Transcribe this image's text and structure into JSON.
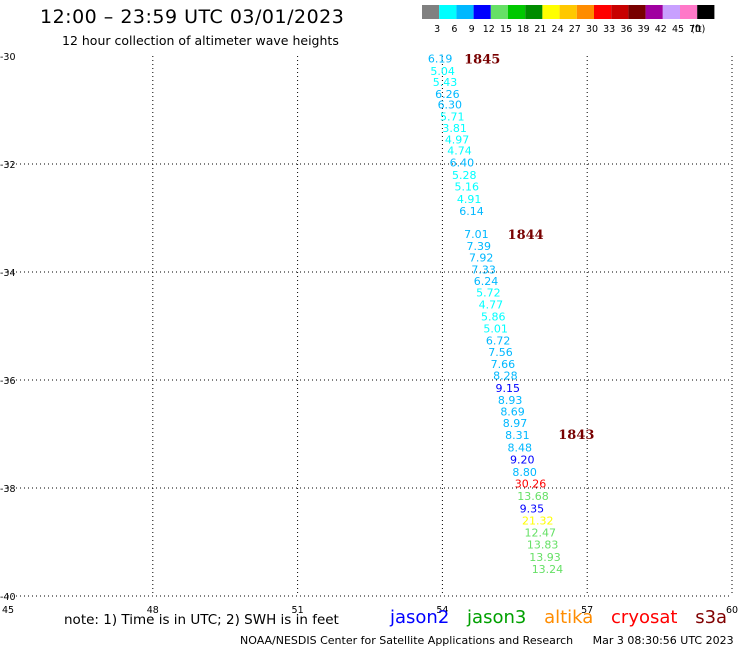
{
  "title": "12:00 – 23:59 UTC 03/01/2023",
  "subtitle": "12 hour collection of altimeter wave heights",
  "colorbar": {
    "unit": "(ft)",
    "bins": [
      {
        "label": "3",
        "color": "#808080"
      },
      {
        "label": "6",
        "color": "#00ffff"
      },
      {
        "label": "9",
        "color": "#00b8ff"
      },
      {
        "label": "12",
        "color": "#0000ff"
      },
      {
        "label": "15",
        "color": "#66e066"
      },
      {
        "label": "18",
        "color": "#00c800"
      },
      {
        "label": "21",
        "color": "#008c00"
      },
      {
        "label": "24",
        "color": "#ffff00"
      },
      {
        "label": "27",
        "color": "#ffc800"
      },
      {
        "label": "30",
        "color": "#ff8c00"
      },
      {
        "label": "33",
        "color": "#ff0000"
      },
      {
        "label": "36",
        "color": "#c80000"
      },
      {
        "label": "39",
        "color": "#780000"
      },
      {
        "label": "42",
        "color": "#a000a0"
      },
      {
        "label": "45",
        "color": "#c8a0ff"
      },
      {
        "label": "70",
        "color": "#ff78c8"
      },
      {
        "label": "",
        "color": "#000000"
      }
    ]
  },
  "axes": {
    "lat_labels": [
      "-30",
      "-32",
      "-34",
      "-36",
      "-38",
      "-40"
    ],
    "lon_labels": [
      "45",
      "48",
      "51",
      "54",
      "57",
      "60"
    ]
  },
  "time_labels": [
    {
      "text": "1845",
      "lon": 54.45,
      "lat": -30.05
    },
    {
      "text": "1844",
      "lon": 55.35,
      "lat": -33.3
    },
    {
      "text": "1843",
      "lon": 56.4,
      "lat": -37.0
    }
  ],
  "observations": [
    {
      "text": "6.19",
      "lon": 53.7,
      "lat": -30.05,
      "color": "#00b8ff"
    },
    {
      "text": "5.04",
      "lon": 53.75,
      "lat": -30.28,
      "color": "#00ffff"
    },
    {
      "text": "5.43",
      "lon": 53.8,
      "lat": -30.48,
      "color": "#00ffff"
    },
    {
      "text": "6.26",
      "lon": 53.85,
      "lat": -30.7,
      "color": "#00b8ff"
    },
    {
      "text": "6.30",
      "lon": 53.9,
      "lat": -30.9,
      "color": "#00b8ff"
    },
    {
      "text": "5.71",
      "lon": 53.95,
      "lat": -31.12,
      "color": "#00ffff"
    },
    {
      "text": "3.81",
      "lon": 54.0,
      "lat": -31.33,
      "color": "#00ffff"
    },
    {
      "text": "4.97",
      "lon": 54.05,
      "lat": -31.55,
      "color": "#00ffff"
    },
    {
      "text": "4.74",
      "lon": 54.1,
      "lat": -31.75,
      "color": "#00ffff"
    },
    {
      "text": "6.40",
      "lon": 54.15,
      "lat": -31.97,
      "color": "#00b8ff"
    },
    {
      "text": "5.28",
      "lon": 54.2,
      "lat": -32.2,
      "color": "#00ffff"
    },
    {
      "text": "5.16",
      "lon": 54.25,
      "lat": -32.42,
      "color": "#00ffff"
    },
    {
      "text": "4.91",
      "lon": 54.3,
      "lat": -32.65,
      "color": "#00ffff"
    },
    {
      "text": "6.14",
      "lon": 54.35,
      "lat": -32.87,
      "color": "#00b8ff"
    },
    {
      "text": "7.01",
      "lon": 54.45,
      "lat": -33.3,
      "color": "#00b8ff"
    },
    {
      "text": "7.39",
      "lon": 54.5,
      "lat": -33.52,
      "color": "#00b8ff"
    },
    {
      "text": "7.92",
      "lon": 54.55,
      "lat": -33.73,
      "color": "#00b8ff"
    },
    {
      "text": "7.33",
      "lon": 54.6,
      "lat": -33.95,
      "color": "#00b8ff"
    },
    {
      "text": "6.24",
      "lon": 54.65,
      "lat": -34.17,
      "color": "#00b8ff"
    },
    {
      "text": "5.72",
      "lon": 54.7,
      "lat": -34.38,
      "color": "#00ffff"
    },
    {
      "text": "4.77",
      "lon": 54.75,
      "lat": -34.6,
      "color": "#00ffff"
    },
    {
      "text": "5.86",
      "lon": 54.8,
      "lat": -34.82,
      "color": "#00ffff"
    },
    {
      "text": "5.01",
      "lon": 54.85,
      "lat": -35.05,
      "color": "#00ffff"
    },
    {
      "text": "6.72",
      "lon": 54.9,
      "lat": -35.27,
      "color": "#00b8ff"
    },
    {
      "text": "7.56",
      "lon": 54.95,
      "lat": -35.48,
      "color": "#00b8ff"
    },
    {
      "text": "7.66",
      "lon": 55.0,
      "lat": -35.7,
      "color": "#00b8ff"
    },
    {
      "text": "8.28",
      "lon": 55.05,
      "lat": -35.92,
      "color": "#00b8ff"
    },
    {
      "text": "9.15",
      "lon": 55.1,
      "lat": -36.15,
      "color": "#0000ff"
    },
    {
      "text": "8.93",
      "lon": 55.15,
      "lat": -36.37,
      "color": "#00b8ff"
    },
    {
      "text": "8.69",
      "lon": 55.2,
      "lat": -36.58,
      "color": "#00b8ff"
    },
    {
      "text": "8.97",
      "lon": 55.25,
      "lat": -36.8,
      "color": "#00b8ff"
    },
    {
      "text": "8.31",
      "lon": 55.3,
      "lat": -37.02,
      "color": "#00b8ff"
    },
    {
      "text": "8.48",
      "lon": 55.35,
      "lat": -37.25,
      "color": "#00b8ff"
    },
    {
      "text": "9.20",
      "lon": 55.4,
      "lat": -37.47,
      "color": "#0000ff"
    },
    {
      "text": "8.80",
      "lon": 55.45,
      "lat": -37.7,
      "color": "#00b8ff"
    },
    {
      "text": "30.26",
      "lon": 55.5,
      "lat": -37.92,
      "color": "#ff0000"
    },
    {
      "text": "13.68",
      "lon": 55.55,
      "lat": -38.15,
      "color": "#66e066"
    },
    {
      "text": "9.35",
      "lon": 55.6,
      "lat": -38.38,
      "color": "#0000ff"
    },
    {
      "text": "21.32",
      "lon": 55.65,
      "lat": -38.6,
      "color": "#ffff00"
    },
    {
      "text": "12.47",
      "lon": 55.7,
      "lat": -38.82,
      "color": "#66e066"
    },
    {
      "text": "13.83",
      "lon": 55.75,
      "lat": -39.05,
      "color": "#66e066"
    },
    {
      "text": "13.93",
      "lon": 55.8,
      "lat": -39.28,
      "color": "#66e066"
    },
    {
      "text": "13.24",
      "lon": 55.85,
      "lat": -39.5,
      "color": "#66e066"
    }
  ],
  "note": "note:  1) Time is in UTC;  2) SWH is in feet",
  "legend": [
    {
      "text": "jason2",
      "color": "#0000ff"
    },
    {
      "text": "jason3",
      "color": "#00a000"
    },
    {
      "text": "altika",
      "color": "#ff8c00"
    },
    {
      "text": "cryosat",
      "color": "#ff0000"
    },
    {
      "text": "s3a",
      "color": "#800000"
    }
  ],
  "footer": {
    "credit": "NOAA/NESDIS Center for Satellite Applications and Research",
    "timestamp": "Mar  3 08:30:56 UTC 2023"
  }
}
